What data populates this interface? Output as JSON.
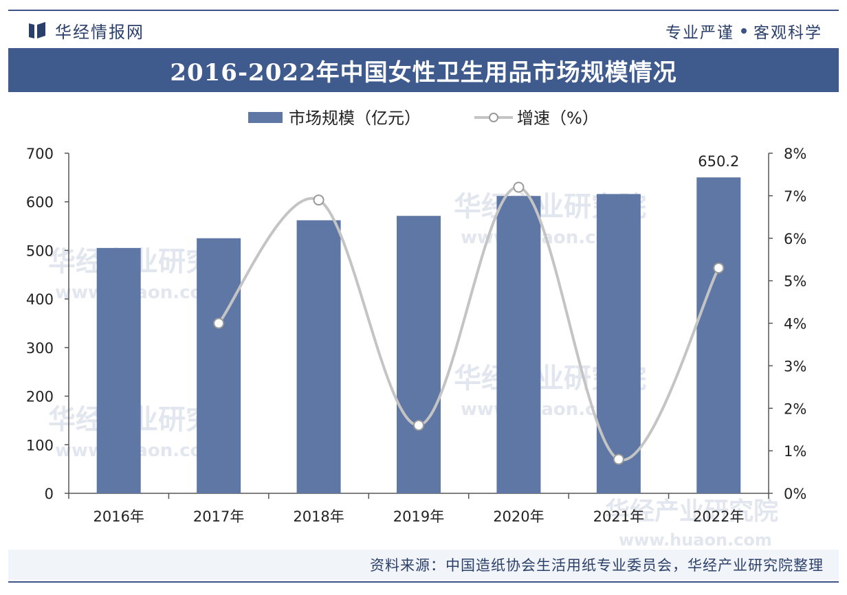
{
  "header": {
    "brand": "华经情报网",
    "slogan_left": "专业严谨",
    "slogan_right": "客观科学",
    "brand_color": "#3f5a8d"
  },
  "watermark": {
    "line1": "华经产业研究院",
    "line2": "www.huaon.com"
  },
  "source": "资料来源：中国造纸协会生活用纸专业委员会，华经产业研究院整理",
  "chart_data": {
    "type": "bar",
    "title": "2016-2022年中国女性卫生用品市场规模情况",
    "categories": [
      "2016年",
      "2017年",
      "2018年",
      "2019年",
      "2020年",
      "2021年",
      "2022年"
    ],
    "series": [
      {
        "name": "市场规模（亿元）",
        "type": "bar",
        "axis": "left",
        "color": "#5e77a4",
        "values": [
          505,
          525,
          562,
          571,
          612,
          616,
          650.2
        ]
      },
      {
        "name": "增速（%）",
        "type": "line",
        "axis": "right",
        "color": "#c4c4c4",
        "values": [
          null,
          4.0,
          6.9,
          1.6,
          7.2,
          0.8,
          5.3
        ]
      }
    ],
    "data_labels": [
      {
        "index": 6,
        "text": "650.2"
      }
    ],
    "yleft": {
      "lim": [
        0,
        700
      ],
      "ticks": [
        "0",
        "100",
        "200",
        "300",
        "400",
        "500",
        "600",
        "700"
      ]
    },
    "yright": {
      "lim": [
        0,
        8
      ],
      "ticks": [
        "0%",
        "1%",
        "2%",
        "3%",
        "4%",
        "5%",
        "6%",
        "7%",
        "8%"
      ]
    },
    "legend": {
      "position": "top-center"
    },
    "grid": false
  }
}
